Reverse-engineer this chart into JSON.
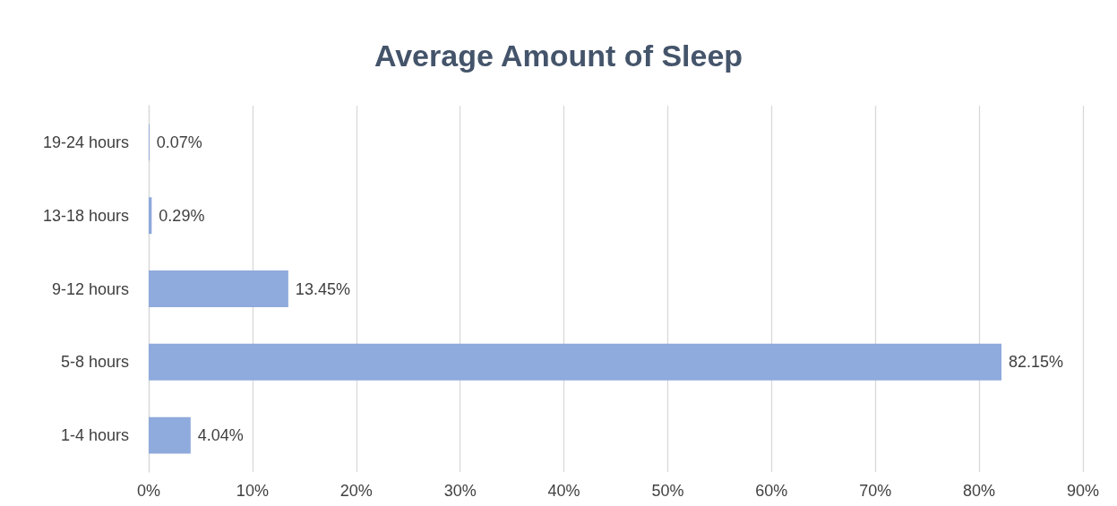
{
  "chart_data": {
    "type": "bar",
    "orientation": "horizontal",
    "title": "Average Amount of Sleep",
    "categories": [
      "19-24 hours",
      "13-18 hours",
      "9-12 hours",
      "5-8 hours",
      "1-4 hours"
    ],
    "values": [
      0.07,
      0.29,
      13.45,
      82.15,
      4.04
    ],
    "value_labels": [
      "0.07%",
      "0.29%",
      "13.45%",
      "82.15%",
      "4.04%"
    ],
    "color": "#8faadc",
    "xlim": [
      0,
      90
    ],
    "xticks": [
      {
        "value": 0,
        "label": "0%"
      },
      {
        "value": 10,
        "label": "10%"
      },
      {
        "value": 20,
        "label": "20%"
      },
      {
        "value": 30,
        "label": "30%"
      },
      {
        "value": 40,
        "label": "40%"
      },
      {
        "value": 50,
        "label": "50%"
      },
      {
        "value": 60,
        "label": "60%"
      },
      {
        "value": 70,
        "label": "70%"
      },
      {
        "value": 80,
        "label": "80%"
      },
      {
        "value": 90,
        "label": "90%"
      }
    ],
    "grid": "x"
  }
}
